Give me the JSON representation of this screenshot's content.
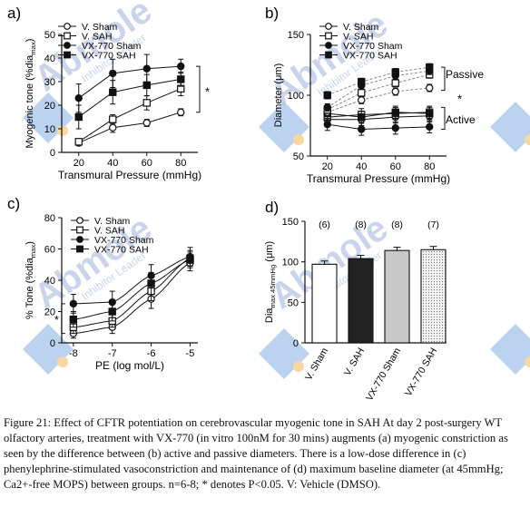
{
  "caption": "Figure 21: Effect of CFTR potentiation on cerebrovascular myogenic tone in SAH At day 2 post-surgery WT olfactory arteries, treatment with VX-770 (in vitro 100nM for 30 mins) augments (a) myogenic constriction as seen by the difference between (b) active and passive diameters. There is a low-dose difference in (c) phenylephrine-stimulated vasoconstriction and maintenance of (d) maximum baseline diameter (at 45mmHg; Ca2+-free MOPS) between groups. n=6-8; * denotes P<0.05. V: Vehicle (DMSO).",
  "watermark": "Abmole Inhibitor Leader",
  "colors": {
    "black": "#111111",
    "sham_fill": "#ffffff",
    "sah_fill": "#222222",
    "vx_sham_fill": "#c8c8c8",
    "vx_sah_fill": "#e6e6e6",
    "watermark": "#b9c7e6",
    "logo_blue": "#9fc0ea",
    "logo_dot": "#f5c87a"
  },
  "chart_data": [
    {
      "panel": "a)",
      "type": "line",
      "xlabel": "Transmural Pressure (mmHg)",
      "ylabel_main": "Myogenic tone (%dia",
      "ylabel_sub": "max",
      "ylabel_end": ")",
      "xlim": [
        10,
        90
      ],
      "ylim": [
        0,
        50
      ],
      "xticks": [
        "20",
        "40",
        "60",
        "80"
      ],
      "yticks": [
        "0",
        "10",
        "20",
        "30",
        "40",
        "50"
      ],
      "x": [
        20,
        40,
        60,
        80
      ],
      "series": [
        {
          "name": "V. Sham",
          "marker": "open-circle",
          "values": [
            4,
            10.5,
            12.5,
            17
          ],
          "err": [
            1,
            2,
            1.5,
            1.5
          ]
        },
        {
          "name": "V. SAH",
          "marker": "open-square",
          "values": [
            4.5,
            14,
            21,
            27
          ],
          "err": [
            1,
            2,
            3,
            3
          ]
        },
        {
          "name": "VX-770 Sham",
          "marker": "filled-circle",
          "values": [
            23,
            33.5,
            35.5,
            36.5
          ],
          "err": [
            6,
            6,
            6,
            3
          ]
        },
        {
          "name": "VX-770 SAH",
          "marker": "filled-square",
          "values": [
            15,
            25.5,
            28.5,
            31
          ],
          "err": [
            5,
            5,
            4.5,
            3
          ]
        }
      ],
      "annotation": "*"
    },
    {
      "panel": "b)",
      "type": "line",
      "xlabel": "Transmural Pressure (mmHg)",
      "ylabel": "Diameter (μm)",
      "xlim": [
        10,
        90
      ],
      "ylim": [
        50,
        150
      ],
      "xticks": [
        "20",
        "40",
        "60",
        "80"
      ],
      "yticks": [
        "50",
        "100",
        "150"
      ],
      "x": [
        20,
        40,
        60,
        80
      ],
      "series": [
        {
          "name": "V. Sham",
          "marker": "open-circle",
          "values": [
            80,
            80,
            82,
            83
          ],
          "err": [
            5,
            5,
            5,
            5
          ]
        },
        {
          "name": "V. SAH",
          "marker": "open-square",
          "values": [
            82,
            84,
            85,
            86
          ],
          "err": [
            5,
            5,
            5,
            5
          ]
        },
        {
          "name": "VX-770 Sham",
          "marker": "filled-circle",
          "values": [
            76,
            72,
            73,
            74
          ],
          "err": [
            5,
            5,
            5,
            5
          ]
        },
        {
          "name": "VX-770 SAH",
          "marker": "filled-square",
          "values": [
            85,
            82,
            86,
            85
          ],
          "err": [
            5,
            5,
            5,
            5
          ]
        },
        {
          "name": "",
          "marker": "open-circle",
          "values": [
            86,
            96,
            103,
            106
          ],
          "err": [
            3,
            3,
            3,
            3
          ]
        },
        {
          "name": "",
          "marker": "open-square",
          "values": [
            88,
            102,
            110,
            117
          ],
          "err": [
            3,
            3,
            3,
            3
          ]
        },
        {
          "name": "",
          "marker": "filled-circle",
          "values": [
            90,
            108,
            116,
            120
          ],
          "err": [
            3,
            3,
            3,
            3
          ]
        },
        {
          "name": "",
          "marker": "filled-square",
          "values": [
            100,
            111,
            119,
            123
          ],
          "err": [
            3,
            3,
            3,
            3
          ]
        }
      ],
      "annotations": [
        "Passive",
        "*",
        "Active"
      ]
    },
    {
      "panel": "c)",
      "type": "line",
      "xlabel": "PE (log mol/L)",
      "ylabel_main": "% Tone (%dia",
      "ylabel_sub": "max",
      "ylabel_end": ")",
      "xlim": [
        -8.3,
        -4.8
      ],
      "ylim": [
        0,
        80
      ],
      "xticks": [
        "-8",
        "-7",
        "-6",
        "-5"
      ],
      "yticks": [
        "0",
        "20",
        "40",
        "60",
        "80"
      ],
      "x": [
        -8,
        -7,
        -6,
        -5
      ],
      "series": [
        {
          "name": "V. Sham",
          "marker": "open-circle",
          "values": [
            6,
            10,
            28,
            51
          ],
          "err": [
            3,
            4,
            6,
            5
          ]
        },
        {
          "name": "V. SAH",
          "marker": "open-square",
          "values": [
            10,
            14,
            33,
            54
          ],
          "err": [
            4,
            4,
            6,
            5
          ]
        },
        {
          "name": "VX-770 Sham",
          "marker": "filled-circle",
          "values": [
            25,
            26,
            43,
            55
          ],
          "err": [
            6,
            7,
            7,
            6
          ]
        },
        {
          "name": "VX-770 SAH",
          "marker": "filled-square",
          "values": [
            15,
            20,
            38,
            53
          ],
          "err": [
            5,
            6,
            7,
            5
          ]
        }
      ],
      "annotation": "*"
    },
    {
      "panel": "d)",
      "type": "bar",
      "ylabel_main": "Dia",
      "ylabel_sub": "max 45mmHg",
      "ylabel_end": " (μm)",
      "ylim": [
        0,
        150
      ],
      "yticks": [
        "0",
        "50",
        "100",
        "150"
      ],
      "categories": [
        "V. Sham",
        "V. SAH",
        "VX-770 Sham",
        "VX-770 SAH"
      ],
      "values": [
        97,
        104,
        114,
        115
      ],
      "err": [
        4,
        4,
        4,
        4
      ],
      "n_labels": [
        "(6)",
        "(8)",
        "(8)",
        "(7)"
      ]
    }
  ]
}
